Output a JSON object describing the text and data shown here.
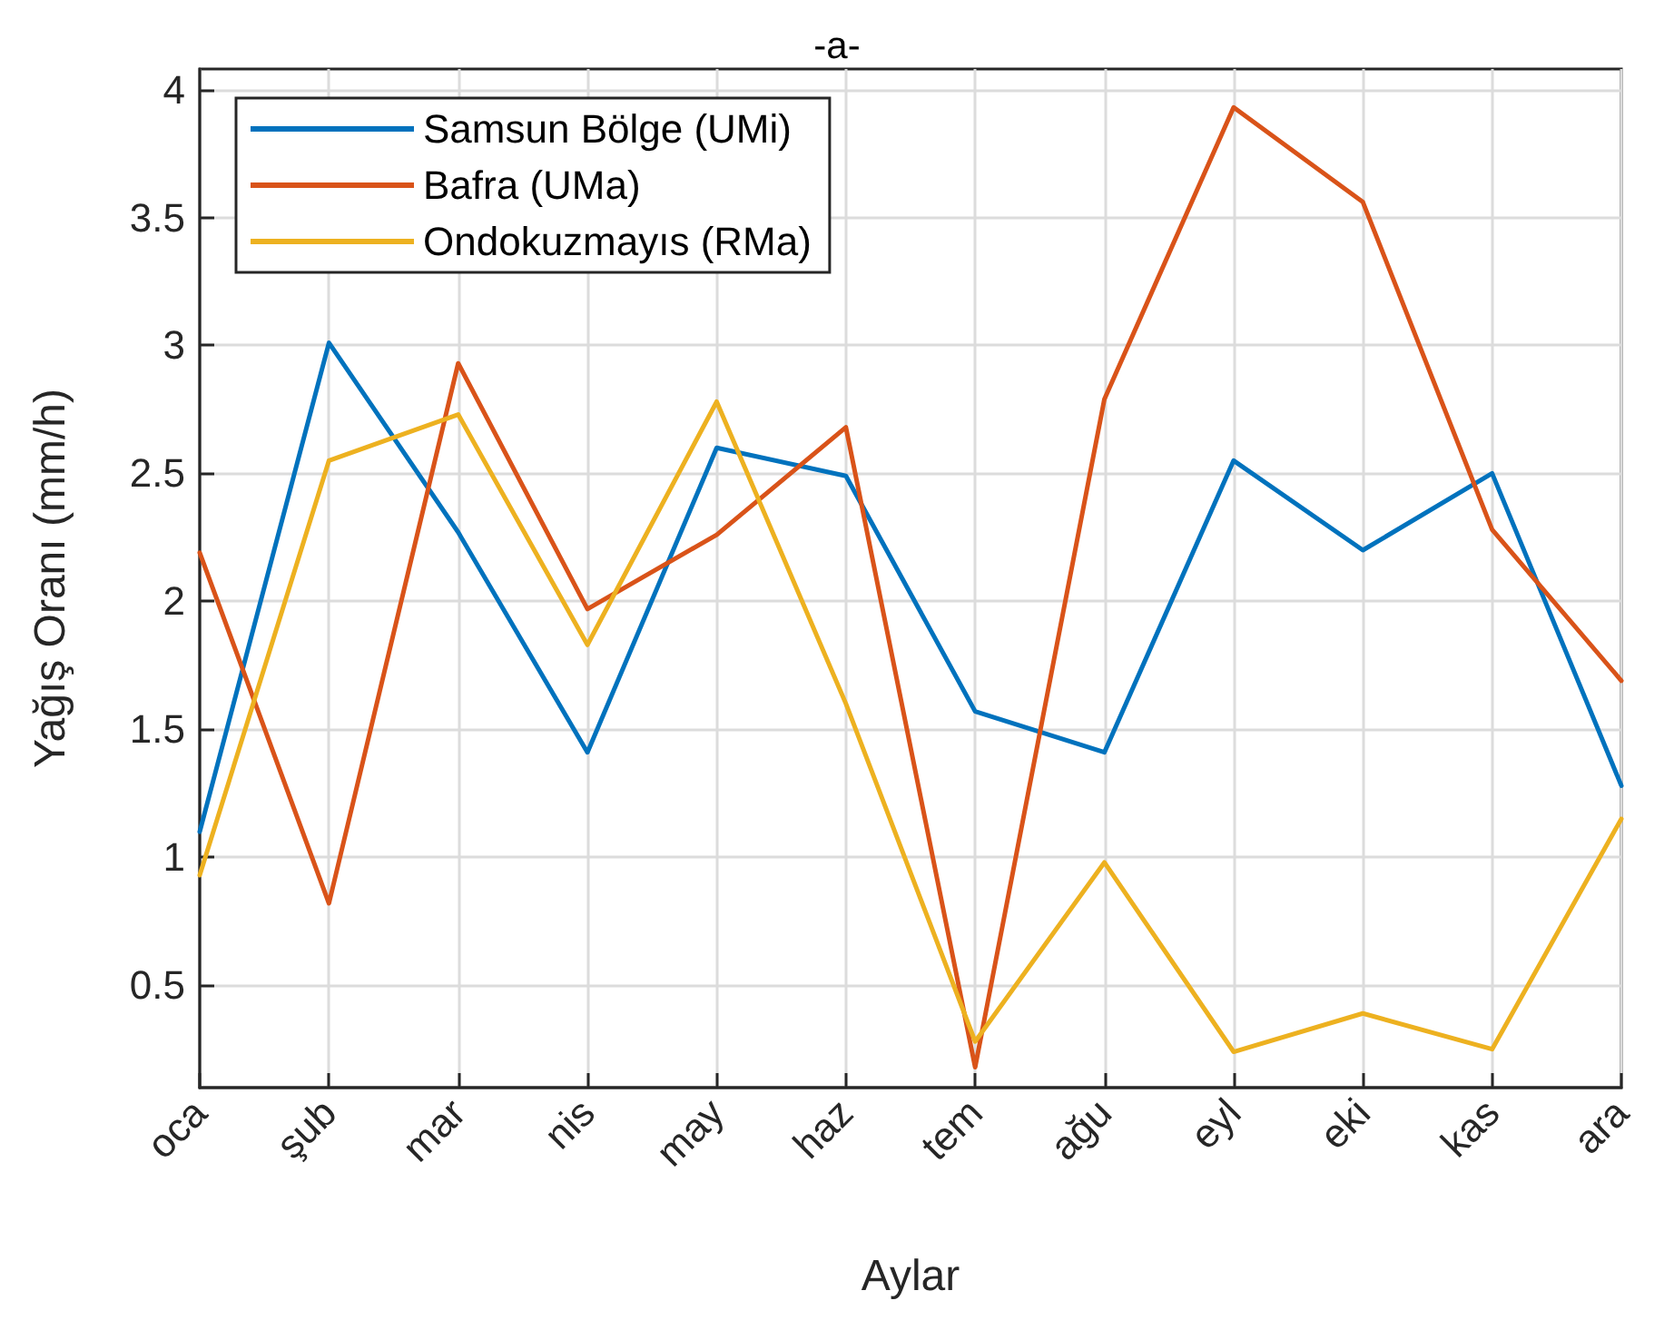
{
  "chart_data": {
    "type": "line",
    "title": "-a-",
    "xlabel": "Aylar",
    "ylabel": "Yağış Oranı (mm/h)",
    "categories": [
      "oca",
      "şub",
      "mar",
      "nis",
      "may",
      "haz",
      "tem",
      "ağu",
      "eyl",
      "eki",
      "kas",
      "ara"
    ],
    "series": [
      {
        "name": "Samsun Bölge (UMi)",
        "color": "#0072bd",
        "values": [
          1.1,
          3.01,
          2.27,
          1.41,
          2.6,
          2.49,
          1.57,
          1.41,
          2.55,
          2.2,
          2.5,
          1.28
        ]
      },
      {
        "name": "Bafra (UMa)",
        "color": "#d95319",
        "values": [
          2.19,
          0.82,
          2.93,
          1.97,
          2.26,
          2.68,
          0.18,
          2.79,
          3.93,
          3.56,
          2.28,
          1.69
        ]
      },
      {
        "name": "Ondokuzmayıs (RMa)",
        "color": "#edb120",
        "values": [
          0.93,
          2.55,
          2.73,
          1.83,
          2.78,
          1.6,
          0.28,
          0.98,
          0.24,
          0.39,
          0.25,
          1.15
        ]
      }
    ],
    "ylim": [
      0.1,
      4.08
    ],
    "yticks": [
      0.5,
      1,
      1.5,
      2,
      2.5,
      3,
      3.5,
      4
    ],
    "grid": true,
    "legend": "top left",
    "marker": "none",
    "line_style": "solid"
  }
}
